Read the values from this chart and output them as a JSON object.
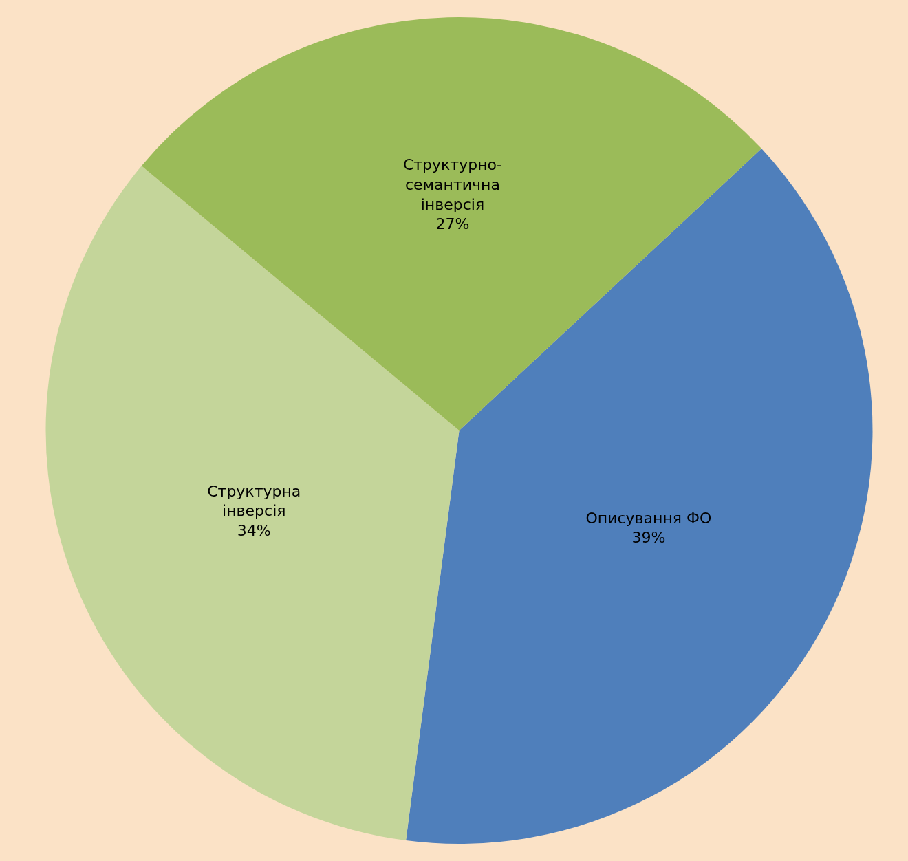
{
  "chart_data": {
    "type": "pie",
    "categories": [
      "Описування ФО",
      "Структурна\nінверсія",
      "Структурно-\nсемантична\nінверсія"
    ],
    "values": [
      39,
      34,
      27
    ],
    "colors": [
      "#4f7fbb",
      "#c4d59a",
      "#9bbb59"
    ],
    "value_labels": [
      "39%",
      "34%",
      "27%"
    ]
  }
}
